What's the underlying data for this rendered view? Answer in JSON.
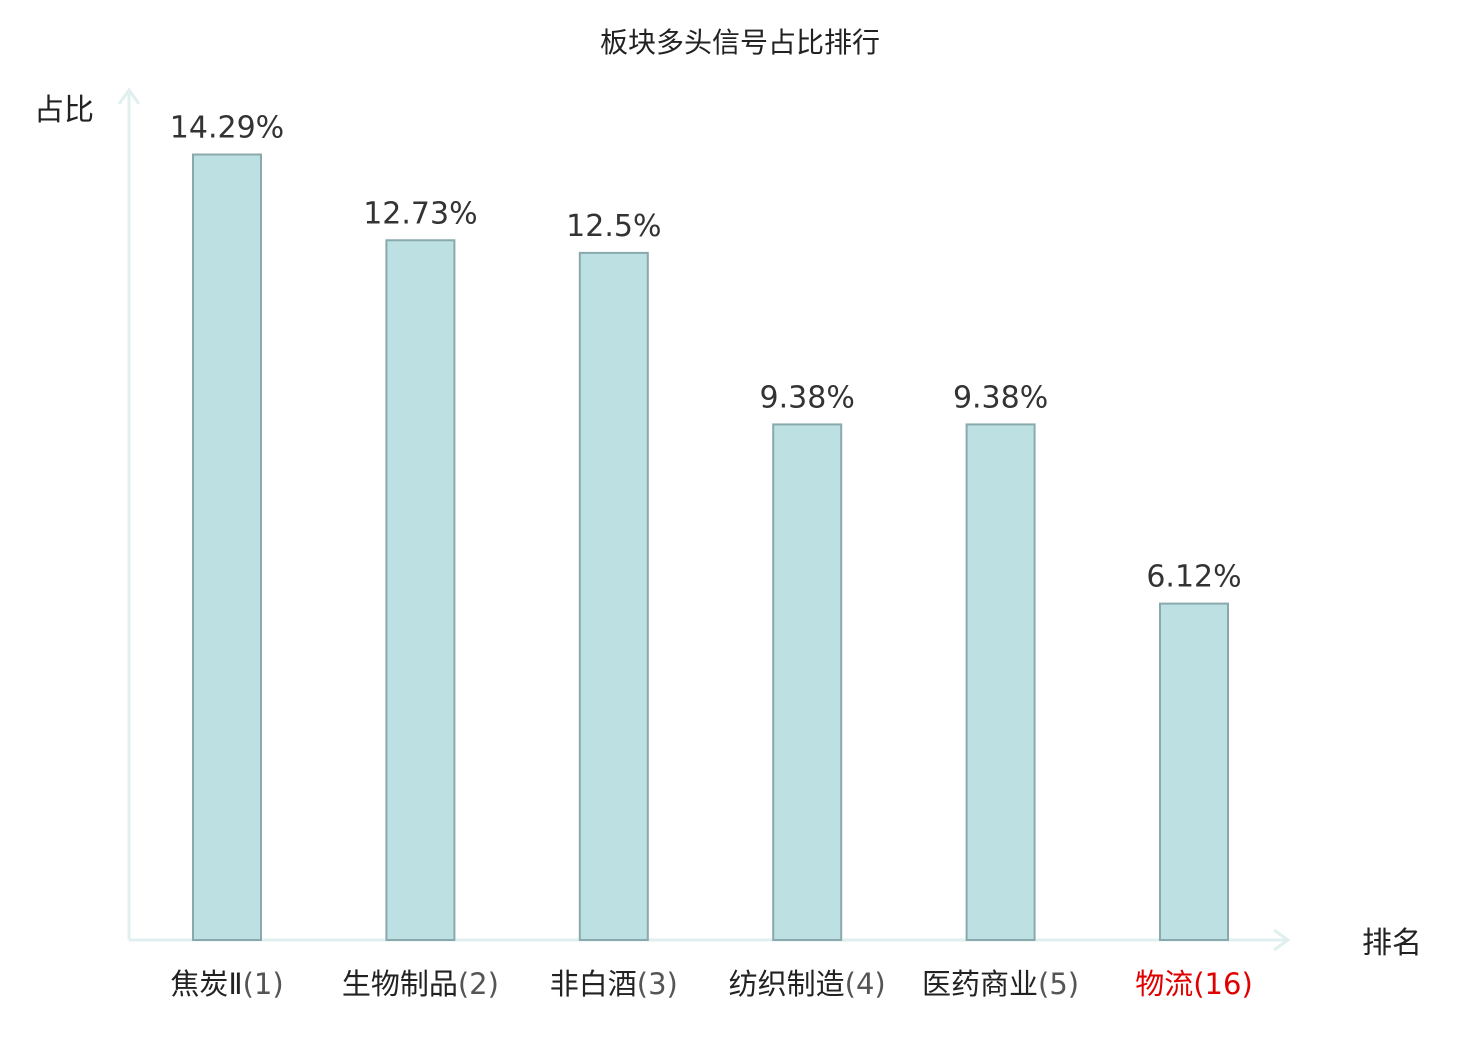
{
  "chart_data": {
    "type": "bar",
    "title": "板块多头信号占比排行",
    "ylabel": "占比",
    "xlabel": "排名",
    "ylim": [
      0,
      15.5
    ],
    "grid": false,
    "categories": [
      "焦炭Ⅱ",
      "生物制品",
      "非白酒",
      "纺织制造",
      "医药商业",
      "物流"
    ],
    "ranks": [
      "(1)",
      "(2)",
      "(3)",
      "(4)",
      "(5)",
      "(16)"
    ],
    "values": [
      14.29,
      12.73,
      12.5,
      9.38,
      9.38,
      6.12
    ],
    "value_labels": [
      "14.29%",
      "12.73%",
      "12.5%",
      "9.38%",
      "9.38%",
      "6.12%"
    ],
    "highlight_index": 5,
    "colors": {
      "bar_fill": "#bde0e3",
      "bar_stroke": "#8aa9ad",
      "axis": "#dff0ee",
      "highlight": "#e00000"
    }
  }
}
